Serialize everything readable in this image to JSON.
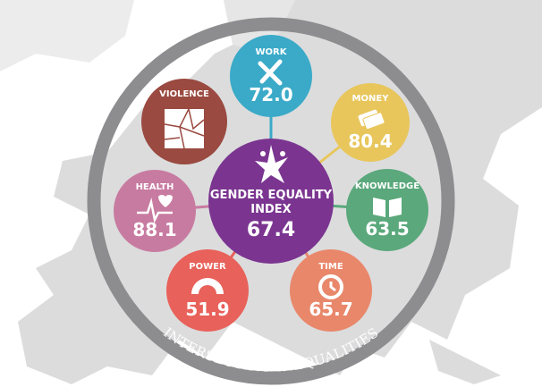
{
  "index": {
    "label_line1": "GENDER EQUALITY",
    "label_line2": "INDEX",
    "value": "67.4",
    "color": "#7b3590",
    "icon": "star-people-icon"
  },
  "domains": [
    {
      "key": "work",
      "label": "WORK",
      "value": "72.0",
      "color": "#3aaac8",
      "icon": "wrench-pencil-icon"
    },
    {
      "key": "money",
      "label": "MONEY",
      "value": "80.4",
      "color": "#e8c65c",
      "icon": "banknotes-icon"
    },
    {
      "key": "knowledge",
      "label": "KNOWLEDGE",
      "value": "63.5",
      "color": "#5aa87b",
      "icon": "book-icon"
    },
    {
      "key": "time",
      "label": "TIME",
      "value": "65.7",
      "color": "#e9876b",
      "icon": "clock-icon"
    },
    {
      "key": "power",
      "label": "POWER",
      "value": "51.9",
      "color": "#e8615a",
      "icon": "parliament-icon"
    },
    {
      "key": "health",
      "label": "HEALTH",
      "value": "88.1",
      "color": "#c87ba0",
      "icon": "heartbeat-icon"
    },
    {
      "key": "violence",
      "label": "VIOLENCE",
      "color": "#9a4a40",
      "icon": "cracked-glass-icon"
    }
  ],
  "ring": {
    "label": "INTERSECTING INEQUALITIES",
    "color": "#8d8d8f"
  },
  "background": {
    "map_color": "#d9d9da",
    "sea_color": "#ffffff"
  }
}
